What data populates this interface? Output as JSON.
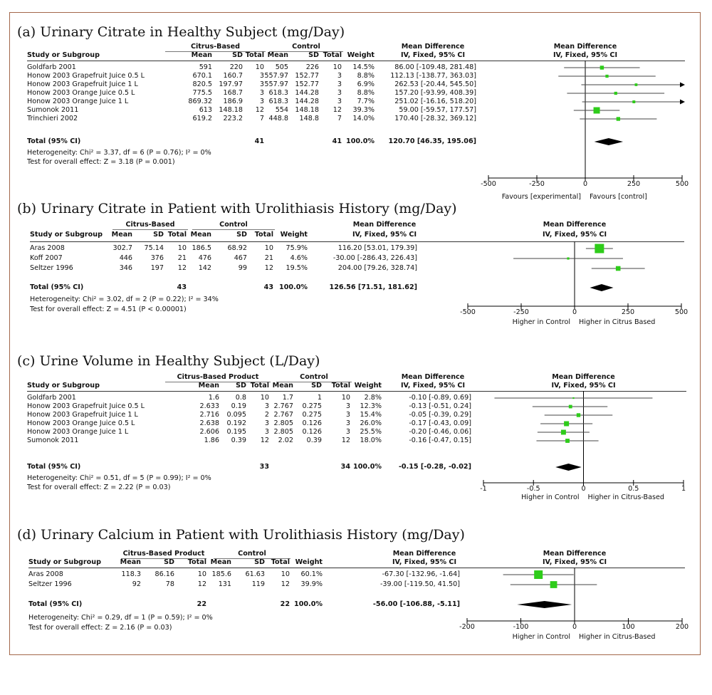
{
  "chart_data": [
    {
      "type": "forest",
      "title": "(a) Urinary Citrate in Healthy Subject (mg/Day)",
      "group1_label": "Citrus-Based",
      "group2_label": "Control",
      "effect_header": "Mean Difference",
      "effect_subheader": "IV, Fixed, 95% CI",
      "plot_header": "Mean Difference",
      "plot_subheader": "IV, Fixed, 95% CI",
      "columns": {
        "study": "Study or Subgroup",
        "mean": "Mean",
        "sd": "SD",
        "total": "Total",
        "weight": "Weight"
      },
      "studies": [
        {
          "name": "Goldfarb 2001",
          "m1": "591",
          "sd1": "220",
          "n1": "10",
          "m2": "505",
          "sd2": "226",
          "n2": "10",
          "weight": "14.5%",
          "ci_text": "86.00 [-109.48, 281.48]",
          "md": 86.0,
          "lo": -109.48,
          "hi": 281.48
        },
        {
          "name": "Honow 2003 Grapefruit Juice 0.5 L",
          "m1": "670.1",
          "sd1": "160.7",
          "n1": "3",
          "m2": "557.97",
          "sd2": "152.77",
          "n2": "3",
          "weight": "8.8%",
          "ci_text": "112.13 [-138.77, 363.03]",
          "md": 112.13,
          "lo": -138.77,
          "hi": 363.03
        },
        {
          "name": "Honow 2003 Grapefruit Juice 1 L",
          "m1": "820.5",
          "sd1": "197.97",
          "n1": "3",
          "m2": "557.97",
          "sd2": "152.77",
          "n2": "3",
          "weight": "6.9%",
          "ci_text": "262.53 [-20.44, 545.50]",
          "md": 262.53,
          "lo": -20.44,
          "hi": 545.5
        },
        {
          "name": "Honow 2003 Orange Juice 0.5 L",
          "m1": "775.5",
          "sd1": "168.7",
          "n1": "3",
          "m2": "618.3",
          "sd2": "144.28",
          "n2": "3",
          "weight": "8.8%",
          "ci_text": "157.20 [-93.99, 408.39]",
          "md": 157.2,
          "lo": -93.99,
          "hi": 408.39
        },
        {
          "name": "Honow 2003 Orange Juice 1 L",
          "m1": "869.32",
          "sd1": "186.9",
          "n1": "3",
          "m2": "618.3",
          "sd2": "144.28",
          "n2": "3",
          "weight": "7.7%",
          "ci_text": "251.02 [-16.16, 518.20]",
          "md": 251.02,
          "lo": -16.16,
          "hi": 518.2
        },
        {
          "name": "Sumonok 2011",
          "m1": "613",
          "sd1": "148.18",
          "n1": "12",
          "m2": "554",
          "sd2": "148.18",
          "n2": "12",
          "weight": "39.3%",
          "ci_text": "59.00 [-59.57, 177.57]",
          "md": 59.0,
          "lo": -59.57,
          "hi": 177.57
        },
        {
          "name": "Trinchieri 2002",
          "m1": "619.2",
          "sd1": "223.2",
          "n1": "7",
          "m2": "448.8",
          "sd2": "148.8",
          "n2": "7",
          "weight": "14.0%",
          "ci_text": "170.40 [-28.32, 369.12]",
          "md": 170.4,
          "lo": -28.32,
          "hi": 369.12
        }
      ],
      "total": {
        "label": "Total (95% CI)",
        "n1": "41",
        "n2": "41",
        "weight": "100.0%",
        "ci_text": "120.70 [46.35, 195.06]",
        "md": 120.7,
        "lo": 46.35,
        "hi": 195.06
      },
      "heterogeneity": "Heterogeneity: Chi² = 3.37, df = 6 (P = 0.76); I² = 0%",
      "overall_test": "Test for overall effect: Z = 3.18 (P = 0.001)",
      "xlim": [
        -500,
        500
      ],
      "ticks": [
        -500,
        -250,
        0,
        250,
        500
      ],
      "tick_labels": [
        "-500",
        "-250",
        "0",
        "250",
        "500"
      ],
      "favours_left": "Favours [experimental]",
      "favours_right": "Favours [control]"
    },
    {
      "type": "forest",
      "title": "(b) Urinary Citrate in Patient with Urolithiasis History (mg/Day)",
      "group1_label": "Citrus-Based",
      "group2_label": "Control",
      "effect_header": "Mean Difference",
      "effect_subheader": "IV, Fixed, 95% CI",
      "plot_header": "Mean Difference",
      "plot_subheader": "IV, Fixed, 95% CI",
      "columns": {
        "study": "Study or Subgroup",
        "mean": "Mean",
        "sd": "SD",
        "total": "Total",
        "weight": "Weight"
      },
      "studies": [
        {
          "name": "Aras 2008",
          "m1": "302.7",
          "sd1": "75.14",
          "n1": "10",
          "m2": "186.5",
          "sd2": "68.92",
          "n2": "10",
          "weight": "75.9%",
          "ci_text": "116.20 [53.01, 179.39]",
          "md": 116.2,
          "lo": 53.01,
          "hi": 179.39
        },
        {
          "name": "Koff 2007",
          "m1": "446",
          "sd1": "376",
          "n1": "21",
          "m2": "476",
          "sd2": "467",
          "n2": "21",
          "weight": "4.6%",
          "ci_text": "-30.00 [-286.43, 226.43]",
          "md": -30.0,
          "lo": -286.43,
          "hi": 226.43
        },
        {
          "name": "Seltzer 1996",
          "m1": "346",
          "sd1": "197",
          "n1": "12",
          "m2": "142",
          "sd2": "99",
          "n2": "12",
          "weight": "19.5%",
          "ci_text": "204.00 [79.26, 328.74]",
          "md": 204.0,
          "lo": 79.26,
          "hi": 328.74
        }
      ],
      "total": {
        "label": "Total (95% CI)",
        "n1": "43",
        "n2": "43",
        "weight": "100.0%",
        "ci_text": "126.56 [71.51, 181.62]",
        "md": 126.56,
        "lo": 71.51,
        "hi": 181.62
      },
      "heterogeneity": "Heterogeneity: Chi² = 3.02, df = 2 (P = 0.22); I² = 34%",
      "overall_test": "Test for overall effect: Z = 4.51 (P < 0.00001)",
      "xlim": [
        -500,
        500
      ],
      "ticks": [
        -500,
        -250,
        0,
        250,
        500
      ],
      "tick_labels": [
        "-500",
        "-250",
        "0",
        "250",
        "500"
      ],
      "favours_left": "Higher in Control",
      "favours_right": "Higher in Citrus Based"
    },
    {
      "type": "forest",
      "title": "(c) Urine Volume in Healthy Subject (L/Day)",
      "group1_label": "Citrus-Based Product",
      "group2_label": "Control",
      "effect_header": "Mean Difference",
      "effect_subheader": "IV, Fixed, 95% CI",
      "plot_header": "Mean Difference",
      "plot_subheader": "IV, Fixed, 95% CI",
      "columns": {
        "study": "Study or Subgroup",
        "mean": "Mean",
        "sd": "SD",
        "total": "Total",
        "weight": "Weight"
      },
      "studies": [
        {
          "name": "Goldfarb 2001",
          "m1": "1.6",
          "sd1": "0.8",
          "n1": "10",
          "m2": "1.7",
          "sd2": "1",
          "n2": "10",
          "weight": "2.8%",
          "ci_text": "-0.10 [-0.89, 0.69]",
          "md": -0.1,
          "lo": -0.89,
          "hi": 0.69
        },
        {
          "name": "Honow 2003 Grapefruit Juice 0.5 L",
          "m1": "2.633",
          "sd1": "0.19",
          "n1": "3",
          "m2": "2.767",
          "sd2": "0.275",
          "n2": "3",
          "weight": "12.3%",
          "ci_text": "-0.13 [-0.51, 0.24]",
          "md": -0.13,
          "lo": -0.51,
          "hi": 0.24
        },
        {
          "name": "Honow 2003 Grapefruit Juice 1 L",
          "m1": "2.716",
          "sd1": "0.095",
          "n1": "2",
          "m2": "2.767",
          "sd2": "0.275",
          "n2": "3",
          "weight": "15.4%",
          "ci_text": "-0.05 [-0.39, 0.29]",
          "md": -0.05,
          "lo": -0.39,
          "hi": 0.29
        },
        {
          "name": "Honow 2003 Orange Juice 0.5 L",
          "m1": "2.638",
          "sd1": "0.192",
          "n1": "3",
          "m2": "2.805",
          "sd2": "0.126",
          "n2": "3",
          "weight": "26.0%",
          "ci_text": "-0.17 [-0.43, 0.09]",
          "md": -0.17,
          "lo": -0.43,
          "hi": 0.09
        },
        {
          "name": "Honow 2003 Orange Juice 1 L",
          "m1": "2.606",
          "sd1": "0.195",
          "n1": "3",
          "m2": "2.805",
          "sd2": "0.126",
          "n2": "3",
          "weight": "25.5%",
          "ci_text": "-0.20 [-0.46, 0.06]",
          "md": -0.2,
          "lo": -0.46,
          "hi": 0.06
        },
        {
          "name": "Sumonok 2011",
          "m1": "1.86",
          "sd1": "0.39",
          "n1": "12",
          "m2": "2.02",
          "sd2": "0.39",
          "n2": "12",
          "weight": "18.0%",
          "ci_text": "-0.16 [-0.47, 0.15]",
          "md": -0.16,
          "lo": -0.47,
          "hi": 0.15
        }
      ],
      "total": {
        "label": "Total (95% CI)",
        "n1": "33",
        "n2": "34",
        "weight": "100.0%",
        "ci_text": "-0.15 [-0.28, -0.02]",
        "md": -0.15,
        "lo": -0.28,
        "hi": -0.02
      },
      "heterogeneity": "Heterogeneity: Chi² = 0.51, df = 5 (P = 0.99); I² = 0%",
      "overall_test": "Test for overall effect: Z = 2.22 (P = 0.03)",
      "xlim": [
        -1,
        1
      ],
      "ticks": [
        -1,
        -0.5,
        0,
        0.5,
        1
      ],
      "tick_labels": [
        "-1",
        "-0.5",
        "0",
        "0.5",
        "1"
      ],
      "favours_left": "Higher in Control",
      "favours_right": "Higher in Citrus-Based"
    },
    {
      "type": "forest",
      "title": "(d) Urinary Calcium in Patient with Urolithiasis History (mg/Day)",
      "group1_label": "Citrus-Based Product",
      "group2_label": "Control",
      "effect_header": "Mean Difference",
      "effect_subheader": "IV, Fixed, 95% CI",
      "plot_header": "Mean Difference",
      "plot_subheader": "IV, Fixed, 95% CI",
      "columns": {
        "study": "Study or Subgroup",
        "mean": "Mean",
        "sd": "SD",
        "total": "Total",
        "weight": "Weight"
      },
      "studies": [
        {
          "name": "Aras 2008",
          "m1": "118.3",
          "sd1": "86.16",
          "n1": "10",
          "m2": "185.6",
          "sd2": "61.63",
          "n2": "10",
          "weight": "60.1%",
          "ci_text": "-67.30 [-132.96, -1.64]",
          "md": -67.3,
          "lo": -132.96,
          "hi": -1.64
        },
        {
          "name": "Seltzer 1996",
          "m1": "92",
          "sd1": "78",
          "n1": "12",
          "m2": "131",
          "sd2": "119",
          "n2": "12",
          "weight": "39.9%",
          "ci_text": "-39.00 [-119.50, 41.50]",
          "md": -39.0,
          "lo": -119.5,
          "hi": 41.5
        }
      ],
      "total": {
        "label": "Total (95% CI)",
        "n1": "22",
        "n2": "22",
        "weight": "100.0%",
        "ci_text": "-56.00 [-106.88, -5.11]",
        "md": -56.0,
        "lo": -106.88,
        "hi": -5.11
      },
      "heterogeneity": "Heterogeneity: Chi² = 0.29, df = 1 (P = 0.59); I² = 0%",
      "overall_test": "Test for overall effect: Z = 2.16 (P = 0.03)",
      "xlim": [
        -200,
        200
      ],
      "ticks": [
        -200,
        -100,
        0,
        100,
        200
      ],
      "tick_labels": [
        "-200",
        "-100",
        "0",
        "100",
        "200"
      ],
      "favours_left": "Higher in Control",
      "favours_right": "Higher in Citrus-Based"
    }
  ],
  "colors": {
    "marker": "#2ecc1a",
    "diamond": "#000000",
    "border": "#a3674a"
  }
}
